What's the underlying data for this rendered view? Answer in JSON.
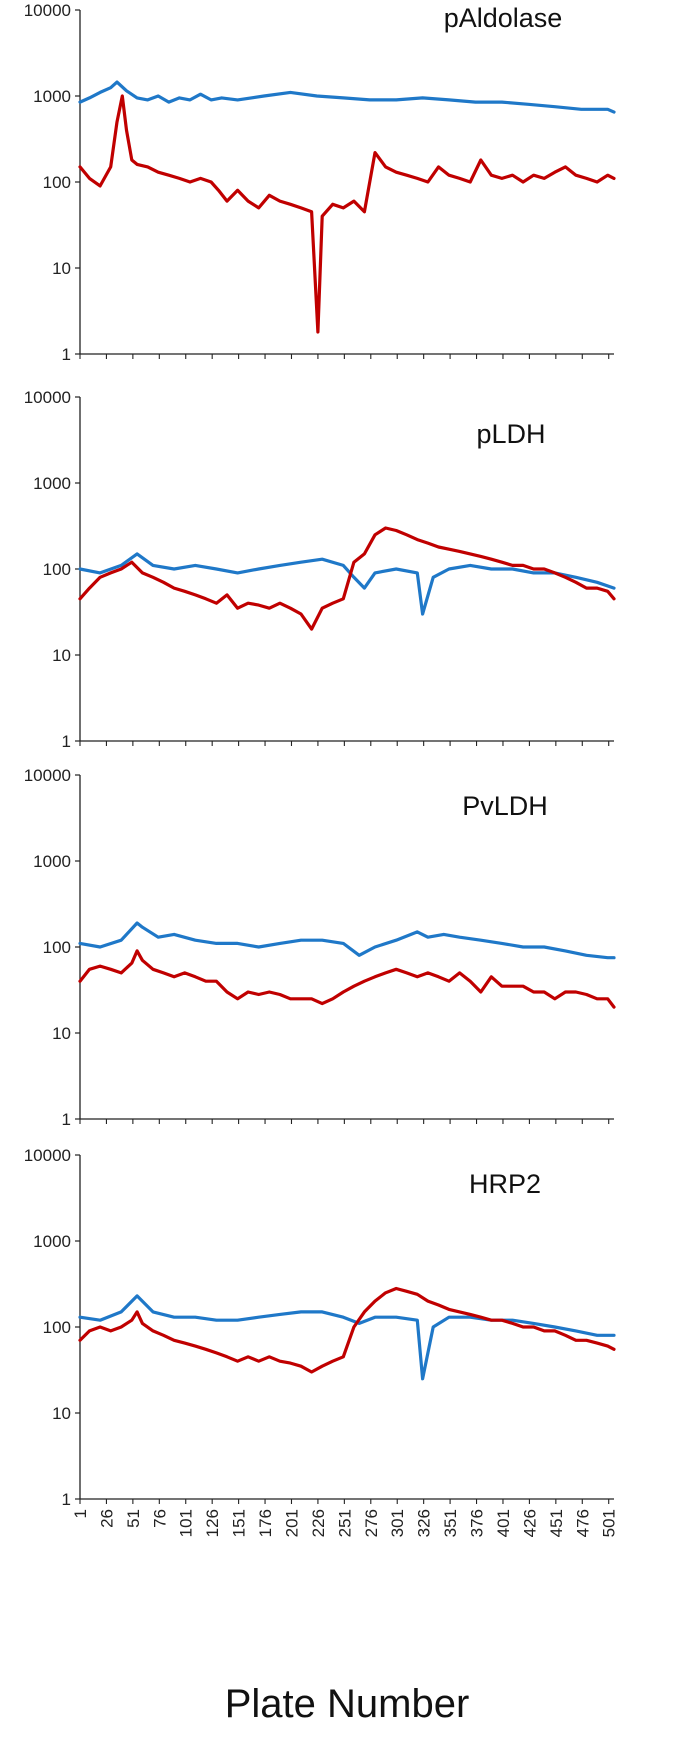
{
  "chart_data": [
    {
      "type": "line",
      "title": "pAldolase",
      "xlabel": "Plate Number",
      "ylabel": "",
      "y_scale": "log",
      "ylim": [
        1,
        10000
      ],
      "yticks": [
        "1",
        "10",
        "100",
        "1000",
        "10000"
      ],
      "xlim": [
        1,
        506
      ],
      "xticks": [
        "1",
        "26",
        "51",
        "76",
        "101",
        "126",
        "151",
        "176",
        "201",
        "226",
        "251",
        "276",
        "301",
        "326",
        "351",
        "376",
        "401",
        "426",
        "451",
        "476",
        "501"
      ],
      "grid": false,
      "colors": {
        "blue": "#1f78c8",
        "red": "#c00000"
      },
      "series": [
        {
          "color": "#1f78c8",
          "x": [
            1,
            10,
            20,
            30,
            36,
            45,
            55,
            65,
            75,
            85,
            95,
            105,
            115,
            125,
            135,
            150,
            175,
            200,
            225,
            250,
            275,
            300,
            325,
            350,
            375,
            400,
            425,
            450,
            475,
            500,
            506
          ],
          "y": [
            850,
            950,
            1100,
            1250,
            1450,
            1150,
            950,
            900,
            1000,
            850,
            950,
            900,
            1050,
            900,
            950,
            900,
            1000,
            1100,
            1000,
            950,
            900,
            900,
            950,
            900,
            850,
            850,
            800,
            750,
            700,
            700,
            650
          ]
        },
        {
          "color": "#c00000",
          "x": [
            1,
            10,
            20,
            30,
            36,
            41,
            45,
            50,
            55,
            65,
            75,
            85,
            95,
            105,
            115,
            125,
            132,
            140,
            150,
            160,
            170,
            180,
            190,
            200,
            210,
            220,
            226,
            230,
            240,
            250,
            260,
            270,
            280,
            290,
            300,
            310,
            320,
            330,
            340,
            350,
            360,
            370,
            380,
            390,
            400,
            410,
            420,
            430,
            440,
            450,
            460,
            470,
            480,
            490,
            500,
            506
          ],
          "y": [
            150,
            110,
            90,
            150,
            500,
            1000,
            400,
            180,
            160,
            150,
            130,
            120,
            110,
            100,
            110,
            100,
            80,
            60,
            80,
            60,
            50,
            70,
            60,
            55,
            50,
            45,
            1.8,
            40,
            55,
            50,
            60,
            45,
            220,
            150,
            130,
            120,
            110,
            100,
            150,
            120,
            110,
            100,
            180,
            120,
            110,
            120,
            100,
            120,
            110,
            130,
            150,
            120,
            110,
            100,
            120,
            110
          ]
        }
      ]
    },
    {
      "type": "line",
      "title": "pLDH",
      "xlabel": "Plate Number",
      "ylabel": "",
      "y_scale": "log",
      "ylim": [
        1,
        10000
      ],
      "yticks": [
        "1",
        "10",
        "100",
        "1000",
        "10000"
      ],
      "xlim": [
        1,
        506
      ],
      "xticks": [
        "1",
        "26",
        "51",
        "76",
        "101",
        "126",
        "151",
        "176",
        "201",
        "226",
        "251",
        "276",
        "301",
        "326",
        "351",
        "376",
        "401",
        "426",
        "451",
        "476",
        "501"
      ],
      "grid": false,
      "colors": {
        "blue": "#1f78c8",
        "red": "#c00000"
      },
      "series": [
        {
          "color": "#1f78c8",
          "x": [
            1,
            20,
            40,
            55,
            70,
            90,
            110,
            130,
            150,
            170,
            190,
            210,
            230,
            250,
            260,
            270,
            280,
            300,
            320,
            325,
            335,
            350,
            370,
            390,
            410,
            430,
            450,
            470,
            490,
            506
          ],
          "y": [
            100,
            90,
            110,
            150,
            110,
            100,
            110,
            100,
            90,
            100,
            110,
            120,
            130,
            110,
            80,
            60,
            90,
            100,
            90,
            30,
            80,
            100,
            110,
            100,
            100,
            90,
            90,
            80,
            70,
            60
          ]
        },
        {
          "color": "#c00000",
          "x": [
            1,
            10,
            20,
            30,
            40,
            50,
            60,
            70,
            80,
            90,
            100,
            110,
            120,
            130,
            140,
            150,
            160,
            170,
            180,
            190,
            200,
            210,
            220,
            230,
            240,
            250,
            260,
            270,
            280,
            290,
            300,
            310,
            320,
            330,
            340,
            350,
            360,
            370,
            380,
            390,
            400,
            410,
            420,
            430,
            440,
            450,
            460,
            470,
            480,
            490,
            500,
            506
          ],
          "y": [
            45,
            60,
            80,
            90,
            100,
            120,
            90,
            80,
            70,
            60,
            55,
            50,
            45,
            40,
            50,
            35,
            40,
            38,
            35,
            40,
            35,
            30,
            20,
            35,
            40,
            45,
            120,
            150,
            250,
            300,
            280,
            250,
            220,
            200,
            180,
            170,
            160,
            150,
            140,
            130,
            120,
            110,
            110,
            100,
            100,
            90,
            80,
            70,
            60,
            60,
            55,
            45
          ]
        }
      ]
    },
    {
      "type": "line",
      "title": "PvLDH",
      "xlabel": "Plate Number",
      "ylabel": "",
      "y_scale": "log",
      "ylim": [
        1,
        10000
      ],
      "yticks": [
        "1",
        "10",
        "100",
        "1000",
        "10000"
      ],
      "xlim": [
        1,
        506
      ],
      "xticks": [
        "1",
        "26",
        "51",
        "76",
        "101",
        "126",
        "151",
        "176",
        "201",
        "226",
        "251",
        "276",
        "301",
        "326",
        "351",
        "376",
        "401",
        "426",
        "451",
        "476",
        "501"
      ],
      "grid": false,
      "colors": {
        "blue": "#1f78c8",
        "red": "#c00000"
      },
      "series": [
        {
          "color": "#1f78c8",
          "x": [
            1,
            20,
            40,
            55,
            60,
            75,
            90,
            110,
            130,
            150,
            170,
            190,
            210,
            230,
            250,
            265,
            280,
            300,
            320,
            330,
            345,
            360,
            380,
            400,
            420,
            440,
            460,
            480,
            500,
            506
          ],
          "y": [
            110,
            100,
            120,
            190,
            170,
            130,
            140,
            120,
            110,
            110,
            100,
            110,
            120,
            120,
            110,
            80,
            100,
            120,
            150,
            130,
            140,
            130,
            120,
            110,
            100,
            100,
            90,
            80,
            75,
            75
          ]
        },
        {
          "color": "#c00000",
          "x": [
            1,
            10,
            20,
            30,
            40,
            50,
            55,
            60,
            70,
            80,
            90,
            100,
            110,
            120,
            130,
            140,
            150,
            160,
            170,
            180,
            190,
            200,
            210,
            220,
            230,
            240,
            250,
            260,
            270,
            280,
            290,
            300,
            310,
            320,
            330,
            340,
            350,
            360,
            370,
            380,
            390,
            400,
            410,
            420,
            430,
            440,
            450,
            460,
            470,
            480,
            490,
            500,
            506
          ],
          "y": [
            40,
            55,
            60,
            55,
            50,
            65,
            90,
            70,
            55,
            50,
            45,
            50,
            45,
            40,
            40,
            30,
            25,
            30,
            28,
            30,
            28,
            25,
            25,
            25,
            22,
            25,
            30,
            35,
            40,
            45,
            50,
            55,
            50,
            45,
            50,
            45,
            40,
            50,
            40,
            30,
            45,
            35,
            35,
            35,
            30,
            30,
            25,
            30,
            30,
            28,
            25,
            25,
            20
          ]
        }
      ]
    },
    {
      "type": "line",
      "title": "HRP2",
      "xlabel": "Plate Number",
      "ylabel": "",
      "y_scale": "log",
      "ylim": [
        1,
        10000
      ],
      "yticks": [
        "1",
        "10",
        "100",
        "1000",
        "10000"
      ],
      "xlim": [
        1,
        506
      ],
      "xticks": [
        "1",
        "26",
        "51",
        "76",
        "101",
        "126",
        "151",
        "176",
        "201",
        "226",
        "251",
        "276",
        "301",
        "326",
        "351",
        "376",
        "401",
        "426",
        "451",
        "476",
        "501"
      ],
      "grid": false,
      "colors": {
        "blue": "#1f78c8",
        "red": "#c00000"
      },
      "series": [
        {
          "color": "#1f78c8",
          "x": [
            1,
            20,
            40,
            55,
            70,
            90,
            110,
            130,
            150,
            170,
            190,
            210,
            230,
            250,
            265,
            280,
            300,
            320,
            325,
            335,
            350,
            370,
            390,
            410,
            430,
            450,
            470,
            490,
            506
          ],
          "y": [
            130,
            120,
            150,
            230,
            150,
            130,
            130,
            120,
            120,
            130,
            140,
            150,
            150,
            130,
            110,
            130,
            130,
            120,
            25,
            100,
            130,
            130,
            120,
            120,
            110,
            100,
            90,
            80,
            80
          ]
        },
        {
          "color": "#c00000",
          "x": [
            1,
            10,
            20,
            30,
            40,
            50,
            55,
            60,
            70,
            80,
            90,
            100,
            110,
            120,
            130,
            140,
            150,
            160,
            170,
            180,
            190,
            200,
            210,
            220,
            230,
            240,
            250,
            260,
            270,
            280,
            290,
            300,
            310,
            320,
            330,
            340,
            350,
            360,
            370,
            380,
            390,
            400,
            410,
            420,
            430,
            440,
            450,
            460,
            470,
            480,
            490,
            500,
            506
          ],
          "y": [
            70,
            90,
            100,
            90,
            100,
            120,
            150,
            110,
            90,
            80,
            70,
            65,
            60,
            55,
            50,
            45,
            40,
            45,
            40,
            45,
            40,
            38,
            35,
            30,
            35,
            40,
            45,
            100,
            150,
            200,
            250,
            280,
            260,
            240,
            200,
            180,
            160,
            150,
            140,
            130,
            120,
            120,
            110,
            100,
            100,
            90,
            90,
            80,
            70,
            70,
            65,
            60,
            55
          ]
        }
      ]
    }
  ]
}
